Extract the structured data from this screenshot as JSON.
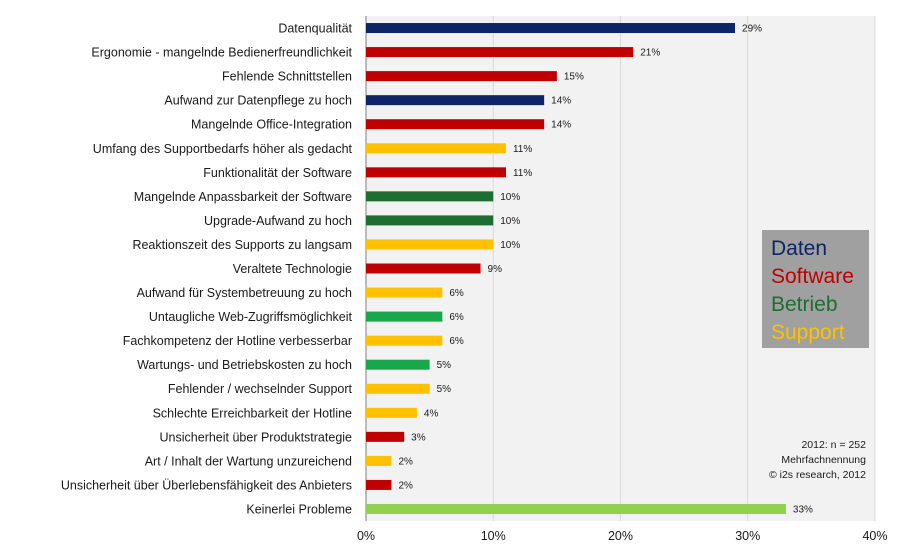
{
  "chart_data": {
    "type": "bar",
    "orientation": "horizontal",
    "xlim": [
      0,
      40
    ],
    "ticks": [
      "0%",
      "10%",
      "20%",
      "30%",
      "40%"
    ],
    "grid": true,
    "legend_placement": "right",
    "categories": [
      "Datenqualität",
      "Ergonomie - mangelnde Bedienerfreundlichkeit",
      "Fehlende Schnittstellen",
      "Aufwand zur Datenpflege zu hoch",
      "Mangelnde Office-Integration",
      "Umfang des Supportbedarfs  höher als gedacht",
      "Funktionalität der Software",
      "Mangelnde Anpassbarkeit der Software",
      "Upgrade-Aufwand zu hoch",
      "Reaktionszeit des Supports zu langsam",
      "Veraltete Technologie",
      "Aufwand für Systembetreuung zu hoch",
      "Untaugliche Web-Zugriffsmöglichkeit",
      "Fachkompetenz der Hotline verbesserbar",
      "Wartungs- und Betriebskosten zu hoch",
      "Fehlender / wechselnder Support",
      "Schlechte Erreichbarkeit der Hotline",
      "Unsicherheit über Produktstrategie",
      "Art / Inhalt der Wartung unzureichend",
      "Unsicherheit über Überlebensfähigkeit des Anbieters",
      "Keinerlei Probleme"
    ],
    "values": [
      29,
      21,
      15,
      14,
      14,
      11,
      11,
      10,
      10,
      10,
      9,
      6,
      6,
      6,
      5,
      5,
      4,
      3,
      2,
      2,
      33
    ],
    "value_labels": [
      "29%",
      "21%",
      "15%",
      "14%",
      "14%",
      "11%",
      "11%",
      "10%",
      "10%",
      "10%",
      "9%",
      "6%",
      "6%",
      "6%",
      "5%",
      "5%",
      "4%",
      "3%",
      "2%",
      "2%",
      "33%"
    ],
    "groups": [
      "Daten",
      "Software",
      "Software",
      "Daten",
      "Software",
      "Support",
      "Software",
      "Betrieb-dark",
      "Betrieb-dark",
      "Support",
      "Software",
      "Support",
      "Betrieb",
      "Support",
      "Betrieb",
      "Support",
      "Support",
      "Software",
      "Support",
      "Software",
      "none"
    ],
    "colors": {
      "Daten": "#0d2566",
      "Software": "#c00000",
      "Betrieb-dark": "#1e6e32",
      "Betrieb": "#18a84a",
      "Support": "#ffc000",
      "none": "#92d050"
    },
    "legend": [
      {
        "label": "Daten",
        "color": "#0d2566"
      },
      {
        "label": "Software",
        "color": "#c00000"
      },
      {
        "label": "Betrieb",
        "color": "#1e6e32"
      },
      {
        "label": "Support",
        "color": "#ffc000"
      }
    ],
    "legend_bg": "#a0a0a0",
    "plot_bg": "#f2f2f2",
    "annotation": [
      "2012: n = 252",
      "Mehrfachnennung",
      "© i2s research, 2012"
    ]
  }
}
